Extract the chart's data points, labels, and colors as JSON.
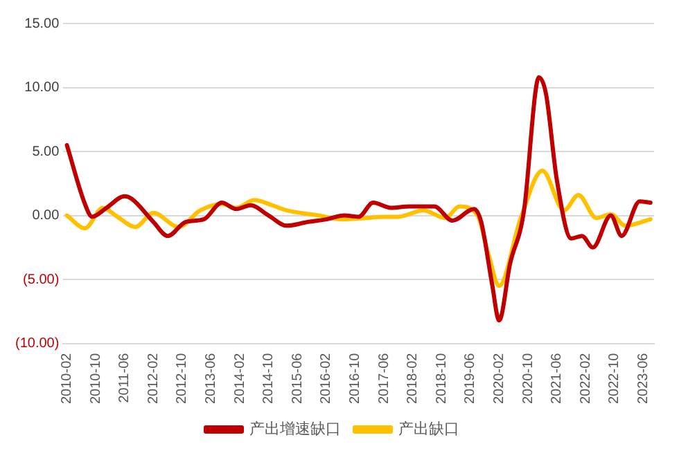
{
  "chart_data": {
    "type": "line",
    "xlim": [
      "2010-01",
      "2023-09"
    ],
    "xticks": [
      "2010-02",
      "2010-10",
      "2011-06",
      "2012-02",
      "2012-10",
      "2013-06",
      "2014-02",
      "2014-10",
      "2015-06",
      "2016-02",
      "2016-10",
      "2017-06",
      "2018-02",
      "2018-10",
      "2019-06",
      "2020-02",
      "2020-10",
      "2021-06",
      "2022-02",
      "2022-10",
      "2023-06"
    ],
    "ylim": [
      -10,
      15
    ],
    "yticks": [
      {
        "value": -10,
        "label": "(10.00)"
      },
      {
        "value": -5,
        "label": "(5.00)"
      },
      {
        "value": 0,
        "label": "0.00"
      },
      {
        "value": 5,
        "label": "5.00"
      },
      {
        "value": 10,
        "label": "10.00"
      },
      {
        "value": 15,
        "label": "15.00"
      }
    ],
    "grid": "y",
    "legend": "bottom",
    "marker": "none",
    "line_style": "solid",
    "series": [
      {
        "name": "产出增速缺口",
        "color": "#c00000",
        "x": [
          "2010-02",
          "2010-07",
          "2010-09",
          "2011-01",
          "2011-06",
          "2011-08",
          "2012-02",
          "2012-06",
          "2012-11",
          "2013-04",
          "2013-09",
          "2014-01",
          "2014-05",
          "2014-10",
          "2015-03",
          "2015-09",
          "2016-02",
          "2016-07",
          "2016-11",
          "2017-03",
          "2017-08",
          "2018-01",
          "2018-08",
          "2019-01",
          "2019-07",
          "2019-09",
          "2019-12",
          "2020-02",
          "2020-05",
          "2020-09",
          "2020-12",
          "2021-01",
          "2021-03",
          "2021-06",
          "2021-10",
          "2022-01",
          "2022-04",
          "2022-09",
          "2022-12",
          "2023-05",
          "2023-08"
        ],
        "values": [
          5.5,
          0.9,
          -0.1,
          0.6,
          1.5,
          1.3,
          -0.5,
          -1.6,
          -0.5,
          -0.3,
          1.0,
          0.5,
          0.8,
          0.0,
          -0.8,
          -0.5,
          -0.3,
          0.0,
          -0.1,
          1.0,
          0.6,
          0.7,
          0.7,
          -0.4,
          0.5,
          -0.5,
          -5.3,
          -8.2,
          -3.8,
          0.6,
          9.5,
          10.8,
          9.5,
          2.8,
          -1.8,
          -1.6,
          -2.5,
          0.0,
          -1.6,
          1.1,
          1.0
        ]
      },
      {
        "name": "产出缺口",
        "color": "#ffc000",
        "x": [
          "2010-02",
          "2010-07",
          "2010-12",
          "2011-04",
          "2011-09",
          "2012-02",
          "2012-09",
          "2013-03",
          "2013-09",
          "2014-01",
          "2014-06",
          "2014-11",
          "2015-03",
          "2015-12",
          "2016-06",
          "2017-01",
          "2017-06",
          "2017-10",
          "2018-05",
          "2018-11",
          "2019-03",
          "2019-08",
          "2019-11",
          "2020-02",
          "2020-08",
          "2021-02",
          "2021-08",
          "2021-12",
          "2022-05",
          "2022-09",
          "2023-01",
          "2023-08"
        ],
        "values": [
          0.0,
          -1.0,
          0.6,
          -0.1,
          -0.9,
          0.2,
          -0.9,
          0.4,
          0.9,
          0.6,
          1.2,
          0.8,
          0.4,
          0.0,
          -0.3,
          -0.2,
          -0.1,
          -0.1,
          0.4,
          -0.2,
          0.7,
          0.0,
          -3.0,
          -5.5,
          -0.2,
          3.5,
          0.4,
          1.6,
          -0.2,
          0.1,
          -0.8,
          -0.3
        ]
      }
    ]
  }
}
